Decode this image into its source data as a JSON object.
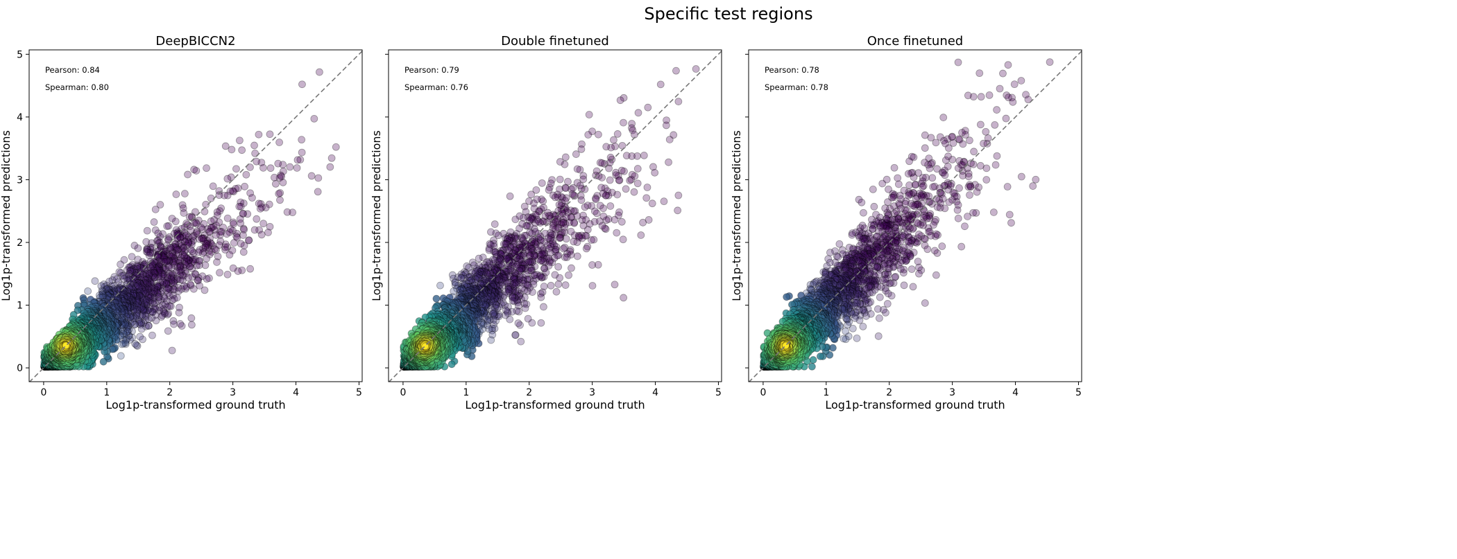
{
  "figure": {
    "suptitle": "Specific test regions"
  },
  "chart_data": [
    {
      "type": "scatter",
      "title": "DeepBICCN2",
      "xlabel": "Log1p-transformed ground truth",
      "ylabel": "Log1p-transformed predictions",
      "xlim": [
        -0.23,
        5.05
      ],
      "ylim": [
        -0.22,
        5.07
      ],
      "xticks": [
        "0",
        "1",
        "2",
        "3",
        "4",
        "5"
      ],
      "yticks": [
        "0",
        "1",
        "2",
        "3",
        "4",
        "5"
      ],
      "show_ytick_labels": true,
      "annotations": [
        "Pearson: 0.84",
        "Spearman: 0.80"
      ],
      "pearson": 0.84,
      "spearman": 0.8,
      "colormap": "viridis",
      "color_encoding": "point density",
      "reference_line": "y = x, dashed grey",
      "grid": false
    },
    {
      "type": "scatter",
      "title": "Double finetuned",
      "xlabel": "Log1p-transformed ground truth",
      "ylabel": "Log1p-transformed predictions",
      "xlim": [
        -0.23,
        5.05
      ],
      "ylim": [
        -0.22,
        5.07
      ],
      "xticks": [
        "0",
        "1",
        "2",
        "3",
        "4",
        "5"
      ],
      "yticks": [
        "0",
        "1",
        "2",
        "3",
        "4",
        "5"
      ],
      "show_ytick_labels": false,
      "annotations": [
        "Pearson: 0.79",
        "Spearman: 0.76"
      ],
      "pearson": 0.79,
      "spearman": 0.76,
      "colormap": "viridis",
      "color_encoding": "point density",
      "reference_line": "y = x, dashed grey",
      "grid": false
    },
    {
      "type": "scatter",
      "title": "Once finetuned",
      "xlabel": "Log1p-transformed ground truth",
      "ylabel": "Log1p-transformed predictions",
      "xlim": [
        -0.23,
        5.05
      ],
      "ylim": [
        -0.22,
        5.07
      ],
      "xticks": [
        "0",
        "1",
        "2",
        "3",
        "4",
        "5"
      ],
      "yticks": [
        "0",
        "1",
        "2",
        "3",
        "4",
        "5"
      ],
      "show_ytick_labels": false,
      "annotations": [
        "Pearson: 0.78",
        "Spearman: 0.78"
      ],
      "pearson": 0.78,
      "spearman": 0.78,
      "colormap": "viridis",
      "color_encoding": "point density",
      "reference_line": "y = x, dashed grey",
      "grid": false
    }
  ]
}
